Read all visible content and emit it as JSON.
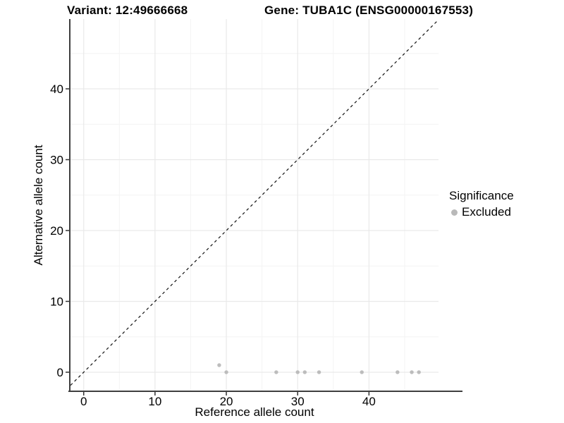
{
  "header": {
    "variant_title": "Variant: 12:49666668",
    "gene_title": "Gene: TUBA1C (ENSG00000167553)"
  },
  "chart_data": {
    "type": "scatter",
    "xlabel": "Reference allele count",
    "ylabel": "Alternative allele count",
    "xlim": [
      -1.85,
      49.75
    ],
    "ylim": [
      -2.69,
      49.85
    ],
    "x_ticks": [
      0,
      10,
      20,
      30,
      40
    ],
    "y_ticks": [
      0,
      10,
      20,
      30,
      40
    ],
    "x_minor": [
      5,
      15,
      25,
      35,
      45
    ],
    "y_minor": [
      5,
      15,
      25,
      35,
      45
    ],
    "grid": "major and minor gridlines on white panel",
    "identity_line": {
      "slope": 1,
      "intercept": 0,
      "style": "dashed",
      "color": "#111111"
    },
    "series": [
      {
        "name": "Excluded",
        "color": "#b9b9b9",
        "points": [
          {
            "x": 19,
            "y": 1
          },
          {
            "x": 20,
            "y": 0
          },
          {
            "x": 27,
            "y": 0
          },
          {
            "x": 30,
            "y": 0
          },
          {
            "x": 31,
            "y": 0
          },
          {
            "x": 33,
            "y": 0
          },
          {
            "x": 39,
            "y": 0
          },
          {
            "x": 44,
            "y": 0
          },
          {
            "x": 46,
            "y": 0
          },
          {
            "x": 47,
            "y": 0
          }
        ]
      }
    ],
    "legend": {
      "title": "Significance",
      "position": "right",
      "entries": [
        {
          "label": "Excluded",
          "color": "#b9b9b9"
        }
      ]
    }
  },
  "colors": {
    "background": "#ffffff",
    "grid_major": "#e9e9e9",
    "grid_minor": "#f4f4f4",
    "axis_line": "#3f3f3f",
    "tick": "#333333",
    "text": "#000000",
    "point": "#b9b9b9"
  }
}
